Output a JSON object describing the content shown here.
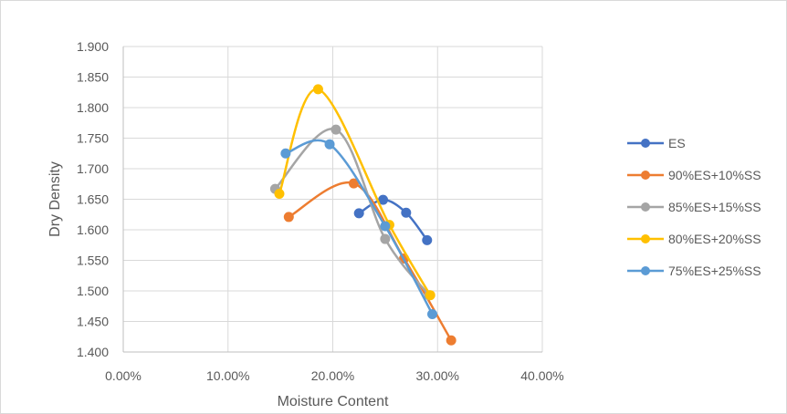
{
  "chart_data": {
    "type": "scatter",
    "title": "",
    "xlabel": "Moisture Content",
    "ylabel": "Dry Density",
    "xlim": [
      0,
      0.4
    ],
    "ylim": [
      1.4,
      1.9
    ],
    "x_ticks": [
      "0.00%",
      "10.00%",
      "20.00%",
      "30.00%",
      "40.00%"
    ],
    "y_ticks": [
      "1.400",
      "1.450",
      "1.500",
      "1.550",
      "1.600",
      "1.650",
      "1.700",
      "1.750",
      "1.800",
      "1.850",
      "1.900"
    ],
    "grid": true,
    "legend_position": "right",
    "smooth_lines": true,
    "series": [
      {
        "name": "ES",
        "color": "#4472C4",
        "points": [
          [
            0.225,
            1.627
          ],
          [
            0.248,
            1.649
          ],
          [
            0.27,
            1.628
          ],
          [
            0.29,
            1.583
          ]
        ]
      },
      {
        "name": "90%ES+10%SS",
        "color": "#ED7D31",
        "points": [
          [
            0.158,
            1.621
          ],
          [
            0.22,
            1.676
          ],
          [
            0.268,
            1.553
          ],
          [
            0.313,
            1.419
          ]
        ]
      },
      {
        "name": "85%ES+15%SS",
        "color": "#A5A5A5",
        "points": [
          [
            0.145,
            1.667
          ],
          [
            0.203,
            1.764
          ],
          [
            0.25,
            1.585
          ],
          [
            0.292,
            1.493
          ]
        ]
      },
      {
        "name": "80%ES+20%SS",
        "color": "#FFC000",
        "points": [
          [
            0.149,
            1.659
          ],
          [
            0.186,
            1.83
          ],
          [
            0.254,
            1.608
          ],
          [
            0.293,
            1.493
          ]
        ]
      },
      {
        "name": "75%ES+25%SS",
        "color": "#5B9BD5",
        "points": [
          [
            0.155,
            1.725
          ],
          [
            0.197,
            1.74
          ],
          [
            0.25,
            1.606
          ],
          [
            0.295,
            1.462
          ]
        ]
      }
    ]
  }
}
